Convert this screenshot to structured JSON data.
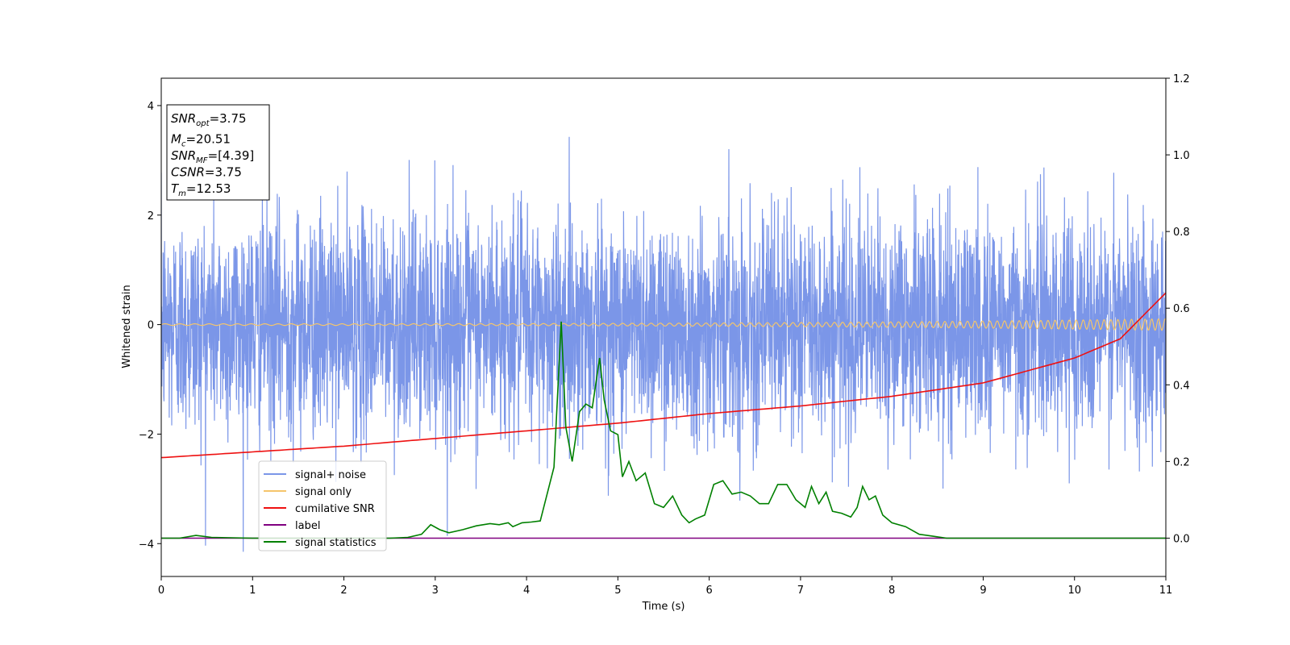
{
  "chart_data": {
    "type": "line",
    "title": "",
    "xlabel": "Time (s)",
    "ylabel": "Whitened strain",
    "xlim": [
      0,
      11
    ],
    "ylim": [
      -4.6,
      4.5
    ],
    "y2lim": [
      -0.1,
      1.2
    ],
    "grid": false,
    "legend_position": "lower-left",
    "x_ticks": [
      0,
      1,
      2,
      3,
      4,
      5,
      6,
      7,
      8,
      9,
      10,
      11
    ],
    "y_ticks": [
      -4,
      -2,
      0,
      2,
      4
    ],
    "y2_ticks": [
      0.0,
      0.2,
      0.4,
      0.6,
      0.8,
      1.0,
      1.2
    ],
    "annotation": {
      "lines": [
        {
          "base": "SNR",
          "sub": "opt",
          "value": "=3.75"
        },
        {
          "base": "M",
          "sub": "c",
          "value": "=20.51"
        },
        {
          "base": "SNR",
          "sub": "MF",
          "value": "=[4.39]"
        },
        {
          "base": "CSNR",
          "sub": "",
          "value": "=3.75"
        },
        {
          "base": "T",
          "sub": "m",
          "value": "=12.53"
        }
      ]
    },
    "series": [
      {
        "name": "signal+ noise",
        "color": "#7b96e8",
        "axis": "left",
        "description": "whitened noise, std ~1, range about -4.1 to 3.8"
      },
      {
        "name": "signal only",
        "color": "#f5c56b",
        "axis": "left",
        "description": "chirp, amplitude ~0.02 rising to ~0.1 at t=11"
      },
      {
        "name": "cumilative SNR",
        "color": "#ee1111",
        "axis": "right",
        "x": [
          0,
          1,
          2,
          3,
          4,
          5,
          6,
          7,
          8,
          9,
          10,
          10.5,
          11
        ],
        "y": [
          0.21,
          0.225,
          0.24,
          0.26,
          0.28,
          0.3,
          0.325,
          0.345,
          0.37,
          0.405,
          0.47,
          0.52,
          0.64
        ]
      },
      {
        "name": "label",
        "color": "#800080",
        "axis": "right",
        "x": [
          0,
          11
        ],
        "y": [
          0.0,
          0.0
        ]
      },
      {
        "name": "signal statistics",
        "color": "#008000",
        "axis": "right",
        "x": [
          0,
          0.2,
          0.38,
          0.55,
          1.0,
          1.5,
          2.0,
          2.5,
          2.7,
          2.85,
          2.95,
          3.05,
          3.15,
          3.3,
          3.45,
          3.6,
          3.7,
          3.8,
          3.85,
          3.95,
          4.05,
          4.15,
          4.3,
          4.38,
          4.43,
          4.5,
          4.58,
          4.65,
          4.72,
          4.8,
          4.85,
          4.92,
          5.0,
          5.05,
          5.12,
          5.2,
          5.3,
          5.4,
          5.5,
          5.6,
          5.7,
          5.78,
          5.85,
          5.95,
          6.05,
          6.15,
          6.25,
          6.35,
          6.45,
          6.55,
          6.65,
          6.75,
          6.85,
          6.95,
          7.05,
          7.12,
          7.2,
          7.28,
          7.35,
          7.45,
          7.55,
          7.62,
          7.68,
          7.75,
          7.82,
          7.9,
          8.0,
          8.15,
          8.3,
          8.45,
          8.6,
          8.8,
          9.0,
          10.0,
          11.0
        ],
        "y": [
          0.0,
          0.0,
          0.007,
          0.002,
          0.0,
          0.0,
          0.0,
          0.0,
          0.002,
          0.01,
          0.035,
          0.022,
          0.014,
          0.022,
          0.032,
          0.038,
          0.035,
          0.04,
          0.03,
          0.04,
          0.042,
          0.045,
          0.185,
          0.565,
          0.29,
          0.2,
          0.33,
          0.35,
          0.34,
          0.47,
          0.36,
          0.28,
          0.27,
          0.16,
          0.2,
          0.15,
          0.17,
          0.09,
          0.08,
          0.11,
          0.06,
          0.04,
          0.05,
          0.06,
          0.14,
          0.15,
          0.115,
          0.12,
          0.11,
          0.09,
          0.09,
          0.14,
          0.14,
          0.1,
          0.08,
          0.135,
          0.09,
          0.12,
          0.07,
          0.065,
          0.055,
          0.08,
          0.135,
          0.1,
          0.11,
          0.06,
          0.04,
          0.03,
          0.01,
          0.005,
          0.0,
          0.0,
          0.0,
          0.0,
          0.0
        ]
      }
    ]
  }
}
